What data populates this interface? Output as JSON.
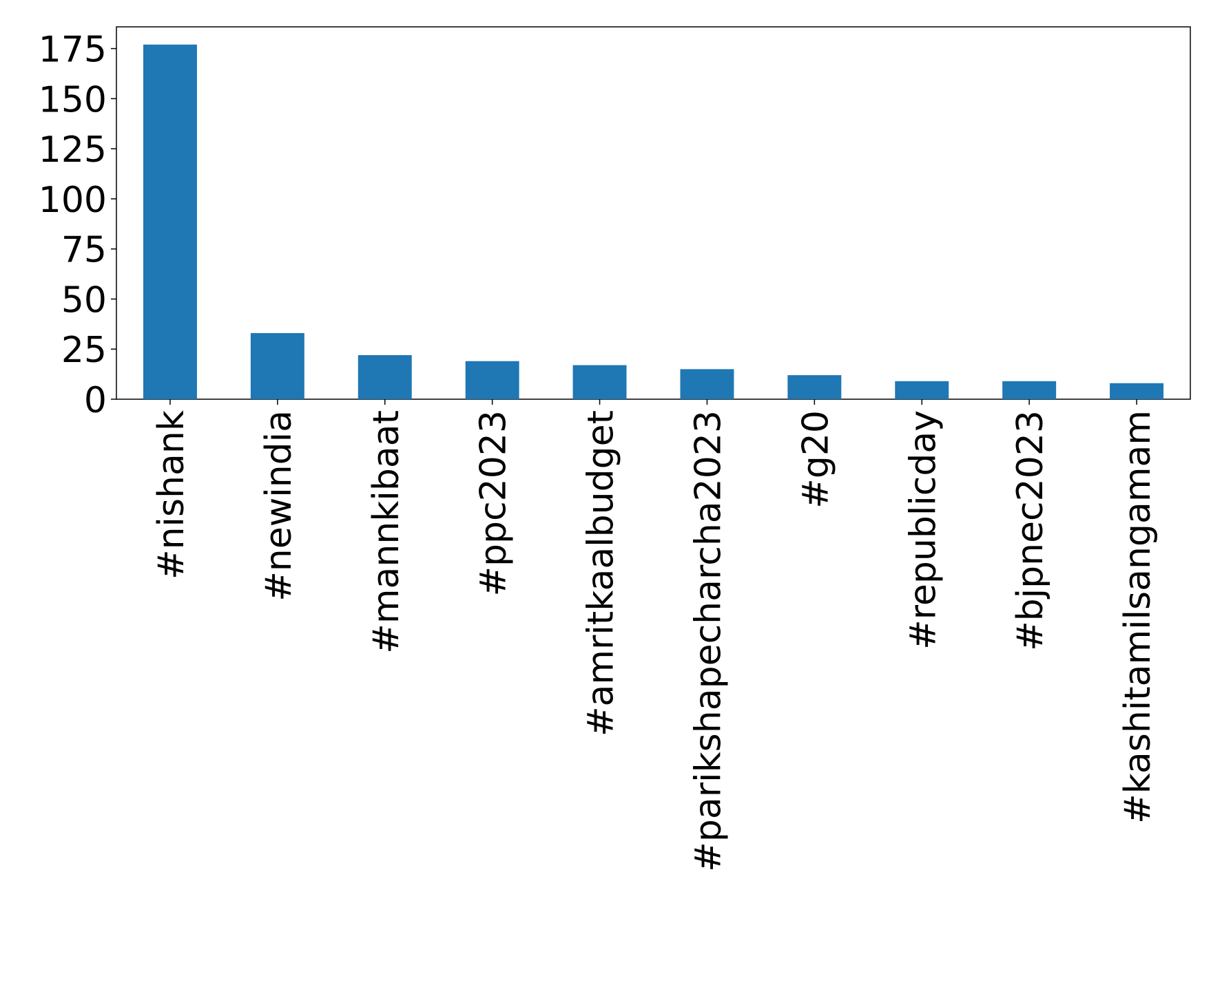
{
  "chart_data": {
    "type": "bar",
    "categories": [
      "#nishank",
      "#newindia",
      "#mannkibaat",
      "#ppc2023",
      "#amritkaalbudget",
      "#parikshapecharcha2023",
      "#g20",
      "#republicday",
      "#bjpnec2023",
      "#kashitamilsangamam"
    ],
    "values": [
      177,
      33,
      22,
      19,
      17,
      15,
      12,
      9,
      9,
      8
    ],
    "color": "#1f77b4",
    "ylim": [
      0,
      185.85
    ],
    "yticks": [
      0,
      25,
      50,
      75,
      100,
      125,
      150,
      175
    ],
    "grid": false
  }
}
